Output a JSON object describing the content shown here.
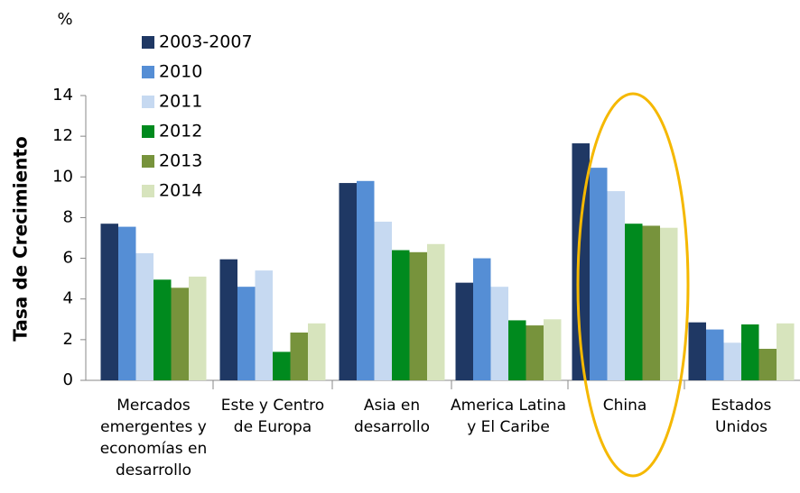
{
  "chart_data": {
    "type": "bar",
    "y_unit": "%",
    "y_label": "Tasa de Crecimiento",
    "categories": [
      "Mercados emergentes y economías en desarrollo",
      "Este y Centro de Europa",
      "Asia en desarrollo",
      "America Latina y El Caribe",
      "China",
      "Estados Unidos"
    ],
    "series": [
      {
        "name": "2003-2007",
        "color": "#1f3864",
        "values": [
          7.7,
          5.95,
          9.7,
          4.8,
          11.65,
          2.85
        ]
      },
      {
        "name": "2010",
        "color": "#558ed5",
        "values": [
          7.55,
          4.6,
          9.8,
          6.0,
          10.45,
          2.5
        ]
      },
      {
        "name": "2011",
        "color": "#c6d9f1",
        "values": [
          6.25,
          5.4,
          7.8,
          4.6,
          9.3,
          1.85
        ]
      },
      {
        "name": "2012",
        "color": "#008a1e",
        "values": [
          4.95,
          1.4,
          6.4,
          2.95,
          7.7,
          2.75
        ]
      },
      {
        "name": "2013",
        "color": "#77933c",
        "values": [
          4.55,
          2.35,
          6.3,
          2.7,
          7.6,
          1.55
        ]
      },
      {
        "name": "2014",
        "color": "#d7e4bd",
        "values": [
          5.1,
          2.8,
          6.7,
          3.0,
          7.5,
          2.8
        ]
      }
    ],
    "ylim": [
      0,
      14
    ],
    "yticks": [
      0,
      2,
      4,
      6,
      8,
      10,
      12,
      14
    ],
    "grid": false,
    "legend": "upper left"
  }
}
